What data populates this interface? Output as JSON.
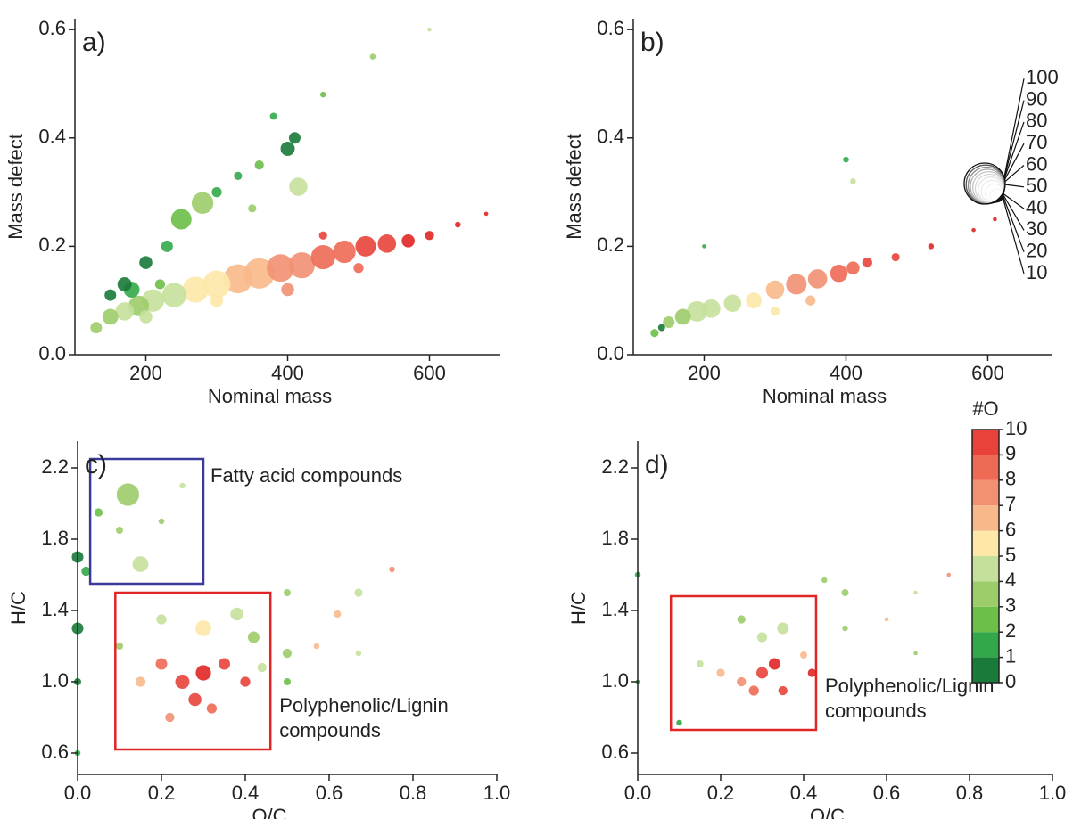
{
  "chart_data": [
    {
      "type": "scatter",
      "panel": "a)",
      "x_label": "Nominal mass",
      "y_label": "Mass defect",
      "xlim": [
        100,
        700
      ],
      "ylim": [
        0,
        0.62
      ],
      "xticks": [
        200,
        400,
        600
      ],
      "yticks": [
        {
          "value": 0,
          "label": "0.0"
        },
        0.2,
        0.4,
        0.6
      ],
      "x": [
        130,
        150,
        170,
        190,
        210,
        240,
        270,
        300,
        330,
        360,
        390,
        420,
        450,
        480,
        510,
        540,
        570,
        600,
        640,
        680,
        400,
        500,
        450,
        300,
        200,
        150,
        170,
        180,
        200,
        230,
        250,
        280,
        300,
        330,
        360,
        400,
        410,
        415,
        380,
        450,
        520,
        600,
        350,
        220
      ],
      "y": [
        0.05,
        0.07,
        0.08,
        0.09,
        0.1,
        0.11,
        0.12,
        0.13,
        0.14,
        0.15,
        0.16,
        0.165,
        0.18,
        0.19,
        0.2,
        0.205,
        0.21,
        0.22,
        0.24,
        0.26,
        0.12,
        0.16,
        0.22,
        0.1,
        0.07,
        0.11,
        0.13,
        0.12,
        0.17,
        0.2,
        0.25,
        0.28,
        0.3,
        0.33,
        0.35,
        0.38,
        0.4,
        0.31,
        0.44,
        0.48,
        0.55,
        0.6,
        0.27,
        0.13
      ],
      "sizes": [
        8,
        15,
        20,
        25,
        30,
        35,
        40,
        45,
        50,
        55,
        45,
        40,
        35,
        30,
        25,
        20,
        10,
        5,
        2,
        1,
        10,
        6,
        4,
        10,
        10,
        8,
        12,
        15,
        10,
        8,
        25,
        28,
        6,
        4,
        5,
        12,
        8,
        20,
        3,
        2,
        2,
        1,
        4,
        6
      ],
      "oxygen": [
        3,
        3,
        4,
        3,
        4,
        4,
        5,
        5,
        6,
        6,
        7,
        7,
        8,
        8,
        9,
        9,
        10,
        10,
        10,
        10,
        7,
        8,
        9,
        5,
        4,
        0,
        0,
        1,
        0,
        1,
        2,
        3,
        1,
        1,
        2,
        0,
        0,
        4,
        1,
        2,
        3,
        4,
        3,
        2
      ]
    },
    {
      "type": "scatter",
      "panel": "b)",
      "x_label": "Nominal mass",
      "y_label": "Mass defect",
      "xlim": [
        100,
        690
      ],
      "ylim": [
        0,
        0.62
      ],
      "xticks": [
        200,
        400,
        600
      ],
      "yticks": [
        {
          "value": 0,
          "label": "0.0"
        },
        0.2,
        0.4,
        0.6
      ],
      "x": [
        130,
        150,
        170,
        190,
        210,
        240,
        270,
        300,
        330,
        360,
        390,
        410,
        430,
        470,
        520,
        580,
        610,
        140,
        200,
        400,
        410,
        300,
        350
      ],
      "y": [
        0.04,
        0.06,
        0.07,
        0.08,
        0.085,
        0.095,
        0.1,
        0.12,
        0.13,
        0.14,
        0.15,
        0.16,
        0.17,
        0.18,
        0.2,
        0.23,
        0.25,
        0.05,
        0.2,
        0.36,
        0.32,
        0.08,
        0.1
      ],
      "sizes": [
        4,
        8,
        15,
        25,
        20,
        18,
        15,
        20,
        25,
        22,
        18,
        10,
        6,
        4,
        2,
        1,
        1,
        3,
        1,
        2,
        2,
        5,
        6
      ],
      "oxygen": [
        2,
        3,
        3,
        4,
        4,
        4,
        5,
        6,
        7,
        7,
        8,
        8,
        9,
        9,
        10,
        10,
        10,
        0,
        1,
        1,
        4,
        5,
        6
      ]
    },
    {
      "type": "scatter",
      "panel": "c)",
      "x_label": "O/C",
      "y_label": "H/C",
      "xlim": [
        0,
        1.0
      ],
      "ylim": [
        0.48,
        2.35
      ],
      "xticks": [
        {
          "value": 0,
          "label": "0.0"
        },
        0.2,
        0.4,
        0.6,
        0.8,
        {
          "value": 1,
          "label": "1.0"
        }
      ],
      "yticks": [
        0.6,
        {
          "value": 1,
          "label": "1.0"
        },
        1.4,
        1.8,
        2.2
      ],
      "x": [
        0,
        0,
        0,
        0,
        0.12,
        0.15,
        0.05,
        0.1,
        0.25,
        0.02,
        0.2,
        0.25,
        0.3,
        0.28,
        0.2,
        0.15,
        0.35,
        0.32,
        0.22,
        0.4,
        0.3,
        0.38,
        0.42,
        0.2,
        0.1,
        0.44,
        0.5,
        0.5,
        0.5,
        0.67,
        0.62,
        0.75,
        0.57,
        0.67
      ],
      "y": [
        1.7,
        1.3,
        1.0,
        0.6,
        2.05,
        1.66,
        1.95,
        1.85,
        2.1,
        1.62,
        1.9,
        1.0,
        1.05,
        0.9,
        1.1,
        1.0,
        1.1,
        0.85,
        0.8,
        1.0,
        1.3,
        1.38,
        1.25,
        1.35,
        1.2,
        1.08,
        1.16,
        1.5,
        1.0,
        1.5,
        1.38,
        1.63,
        1.2,
        1.16
      ],
      "sizes": [
        8,
        8,
        3,
        2,
        30,
        15,
        4,
        3,
        2,
        5,
        2,
        12,
        14,
        10,
        8,
        6,
        8,
        6,
        5,
        6,
        15,
        10,
        8,
        6,
        3,
        5,
        5,
        3,
        3,
        4,
        3,
        2,
        2,
        2
      ],
      "oxygen": [
        0,
        0,
        0,
        1,
        3,
        4,
        2,
        3,
        4,
        1,
        3,
        9,
        10,
        9,
        8,
        6,
        9,
        8,
        7,
        9,
        5,
        4,
        3,
        4,
        3,
        4,
        3,
        3,
        2,
        4,
        6,
        7,
        6,
        4
      ],
      "boxes": [
        {
          "label": [
            "Fatty acid compounds"
          ],
          "color": "#3a3a9a",
          "x": [
            0.03,
            0.3
          ],
          "y": [
            1.55,
            2.25
          ]
        },
        {
          "label": [
            "Polyphenolic/Lignin",
            "compounds"
          ],
          "color": "#e02525",
          "x": [
            0.09,
            0.46
          ],
          "y": [
            0.62,
            1.5
          ]
        }
      ]
    },
    {
      "type": "scatter",
      "panel": "d)",
      "x_label": "O/C",
      "y_label": "H/C",
      "xlim": [
        0,
        1.0
      ],
      "ylim": [
        0.48,
        2.35
      ],
      "xticks": [
        {
          "value": 0,
          "label": "0.0"
        },
        0.2,
        0.4,
        0.6,
        0.8,
        {
          "value": 1,
          "label": "1.0"
        }
      ],
      "yticks": [
        0.6,
        {
          "value": 1,
          "label": "1.0"
        },
        1.4,
        1.8,
        2.2
      ],
      "x": [
        0,
        0,
        0.1,
        0.3,
        0.33,
        0.28,
        0.25,
        0.2,
        0.35,
        0.3,
        0.35,
        0.25,
        0.15,
        0.4,
        0.45,
        0.5,
        0.5,
        0.67,
        0.6,
        0.67,
        0.75,
        0.42
      ],
      "y": [
        1.6,
        1.0,
        0.77,
        1.05,
        1.1,
        0.95,
        1.0,
        1.05,
        0.95,
        1.25,
        1.3,
        1.35,
        1.1,
        1.15,
        1.57,
        1.5,
        1.3,
        1.5,
        1.35,
        1.16,
        1.6,
        1.05
      ],
      "sizes": [
        2,
        1,
        2,
        8,
        8,
        6,
        5,
        4,
        5,
        6,
        8,
        4,
        3,
        3,
        2,
        3,
        2,
        1,
        1,
        1,
        1,
        4
      ],
      "oxygen": [
        1,
        1,
        1,
        9,
        10,
        8,
        7,
        6,
        9,
        4,
        4,
        3,
        4,
        6,
        3,
        3,
        3,
        4,
        6,
        3,
        7,
        10
      ],
      "boxes": [
        {
          "label": [
            "Polyphenolic/Lignin",
            "compounds"
          ],
          "color": "#e02525",
          "x": [
            0.08,
            0.43
          ],
          "y": [
            0.73,
            1.48
          ]
        }
      ]
    }
  ],
  "colorbar": {
    "title": "#O",
    "ticks": [
      0,
      1,
      2,
      3,
      4,
      5,
      6,
      7,
      8,
      9,
      10
    ],
    "colors": [
      "#1a7a3a",
      "#33a84a",
      "#6cbf47",
      "#9dcc6a",
      "#c5e09a",
      "#fde8a8",
      "#f8b88a",
      "#f29072",
      "#ee6a55",
      "#e8423a",
      "#e02525"
    ]
  },
  "size_legend": {
    "values": [
      10,
      20,
      30,
      40,
      50,
      60,
      70,
      80,
      90,
      100
    ]
  }
}
